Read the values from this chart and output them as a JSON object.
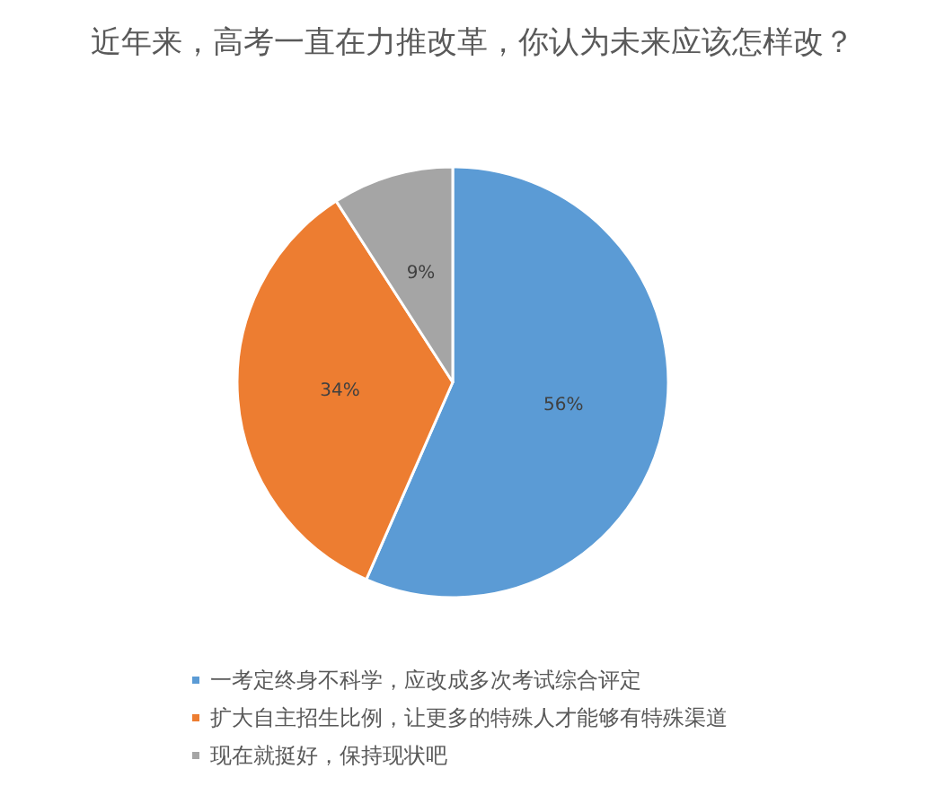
{
  "chart_data": {
    "type": "pie",
    "title": "近年来，高考一直在力推改革，你认为未来应该怎样改？",
    "categories": [
      "一考定终身不科学，应改成多次考试综合评定",
      "扩大自主招生比例，让更多的特殊人才能够有特殊渠道",
      "现在就挺好，保持现状吧"
    ],
    "values": [
      56,
      34,
      9
    ],
    "colors": [
      "#5b9bd5",
      "#ed7d31",
      "#a5a5a5"
    ],
    "value_labels": [
      "56%",
      "34%",
      "9%"
    ],
    "legend": "bottom"
  }
}
